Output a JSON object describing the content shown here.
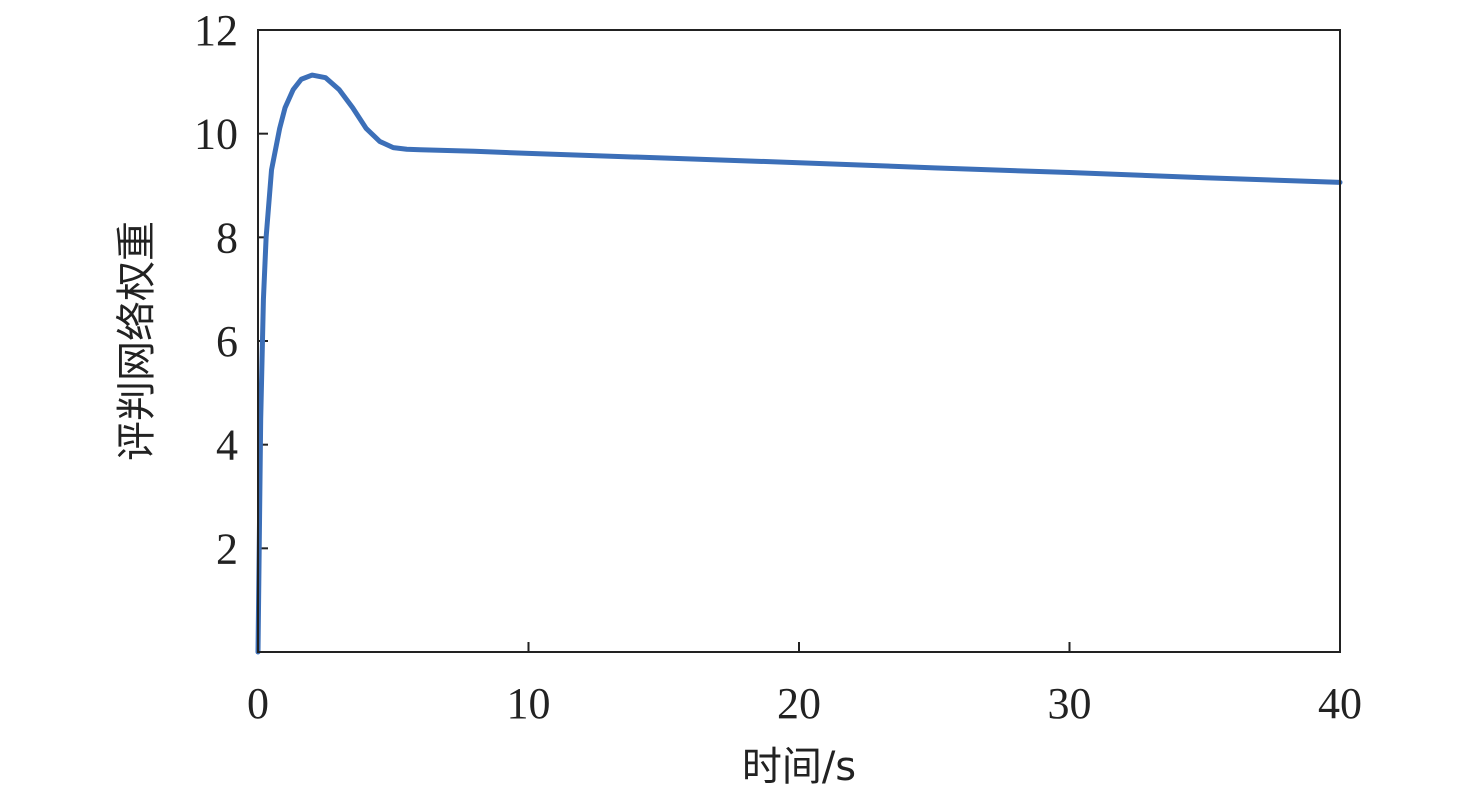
{
  "chart_data": {
    "type": "line",
    "title": "",
    "xlabel": "时间/s",
    "ylabel": "评判网络权重",
    "xlim": [
      0,
      40
    ],
    "ylim": [
      0,
      12
    ],
    "xticks": [
      0,
      10,
      20,
      30,
      40
    ],
    "xtick_labels": [
      "0",
      "10",
      "20",
      "30",
      "40"
    ],
    "yticks": [
      2,
      4,
      6,
      8,
      10,
      12
    ],
    "ytick_labels": [
      "2",
      "4",
      "6",
      "8",
      "10",
      "12"
    ],
    "grid": false,
    "legend": "none",
    "series": [
      {
        "color": "#3c6fb8",
        "x": [
          0,
          0.1,
          0.2,
          0.3,
          0.5,
          0.8,
          1.0,
          1.3,
          1.6,
          2.0,
          2.5,
          3.0,
          3.5,
          4.0,
          4.5,
          5.0,
          5.5,
          6.0,
          8,
          10,
          15,
          20,
          25,
          30,
          35,
          40
        ],
        "y": [
          0,
          4.5,
          6.8,
          8.0,
          9.3,
          10.1,
          10.5,
          10.85,
          11.05,
          11.13,
          11.08,
          10.85,
          10.5,
          10.1,
          9.85,
          9.73,
          9.7,
          9.69,
          9.66,
          9.62,
          9.53,
          9.44,
          9.34,
          9.25,
          9.15,
          9.06
        ]
      }
    ]
  }
}
